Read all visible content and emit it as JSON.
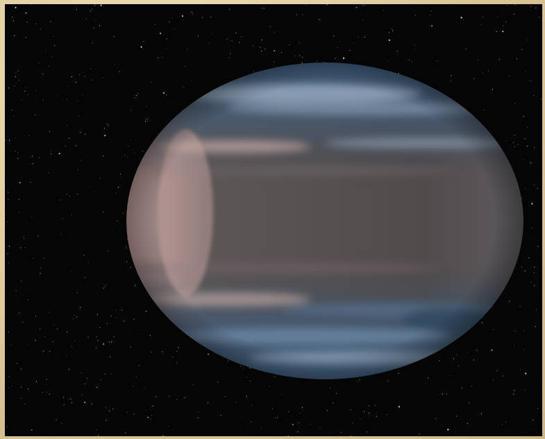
{
  "scene": {
    "subject": "planet",
    "colors": {
      "frame": "#e3cfa3",
      "space": "#050505",
      "planet_ocean": "#3f5f7f",
      "planet_band": "#5a5252",
      "planet_highlight": "#b79a94",
      "cloud": "#9eb0c4",
      "star": "#ffffff"
    }
  }
}
